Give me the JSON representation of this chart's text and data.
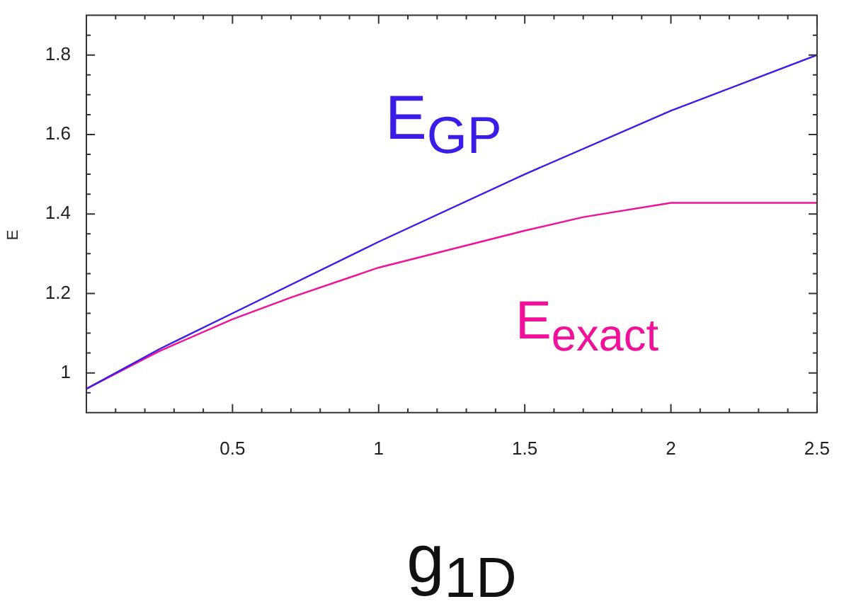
{
  "chart_data": {
    "type": "line",
    "xlabel": "g$_{1D}$",
    "ylabel": "E",
    "annotations": [
      "E$_{GP}$",
      "E$_{exact}$"
    ],
    "series": [
      {
        "color": "#3a1ee8",
        "x": [
          0,
          0.25,
          0.5,
          1,
          1.5,
          2,
          2.5
        ],
        "values": [
          0.96,
          1.06,
          1.15,
          1.33,
          1.5,
          1.66,
          1.8
        ]
      },
      {
        "color": "#f0109a",
        "x": [
          0,
          0.25,
          0.5,
          0.7,
          1,
          1.5,
          1.7,
          2,
          2.5
        ],
        "values": [
          0.96,
          1.055,
          1.135,
          1.19,
          1.265,
          1.358,
          1.392,
          1.428,
          1.428
        ]
      }
    ],
    "xlim": [
      0,
      2.5
    ],
    "xticks": [
      {
        "value": 0,
        "label": null
      },
      {
        "value": 0.1,
        "label": null
      },
      {
        "value": 0.2,
        "label": null
      },
      {
        "value": 0.3,
        "label": null
      },
      {
        "value": 0.4,
        "label": null
      },
      0.5,
      {
        "value": 0.6,
        "label": null
      },
      {
        "value": 0.7,
        "label": null
      },
      {
        "value": 0.8,
        "label": null
      },
      {
        "value": 0.9,
        "label": null
      },
      1,
      {
        "value": 1.1,
        "label": null
      },
      {
        "value": 1.2,
        "label": null
      },
      {
        "value": 1.3,
        "label": null
      },
      {
        "value": 1.4,
        "label": null
      },
      1.5,
      {
        "value": 1.6,
        "label": null
      },
      {
        "value": 1.7,
        "label": null
      },
      {
        "value": 1.8,
        "label": null
      },
      {
        "value": 1.9,
        "label": null
      },
      2,
      {
        "value": 2.1,
        "label": null
      },
      {
        "value": 2.2,
        "label": null
      },
      {
        "value": 2.3,
        "label": null
      },
      {
        "value": 2.4,
        "label": null
      },
      2.5
    ],
    "ylim": [
      0.9,
      1.9
    ],
    "yticks": [
      {
        "value": 0.95,
        "label": null
      },
      1,
      {
        "value": 1.05,
        "label": null
      },
      {
        "value": 1.1,
        "label": null
      },
      {
        "value": 1.15,
        "label": null
      },
      1.2,
      {
        "value": 1.25,
        "label": null
      },
      {
        "value": 1.3,
        "label": null
      },
      {
        "value": 1.35,
        "label": null
      },
      1.4,
      {
        "value": 1.45,
        "label": null
      },
      {
        "value": 1.5,
        "label": null
      },
      {
        "value": 1.55,
        "label": null
      },
      1.6,
      {
        "value": 1.65,
        "label": null
      },
      {
        "value": 1.7,
        "label": null
      },
      {
        "value": 1.75,
        "label": null
      },
      1.8,
      {
        "value": 1.85,
        "label": null
      }
    ],
    "grid": false,
    "legend": false,
    "marker": "none",
    "line_style": "solid"
  }
}
